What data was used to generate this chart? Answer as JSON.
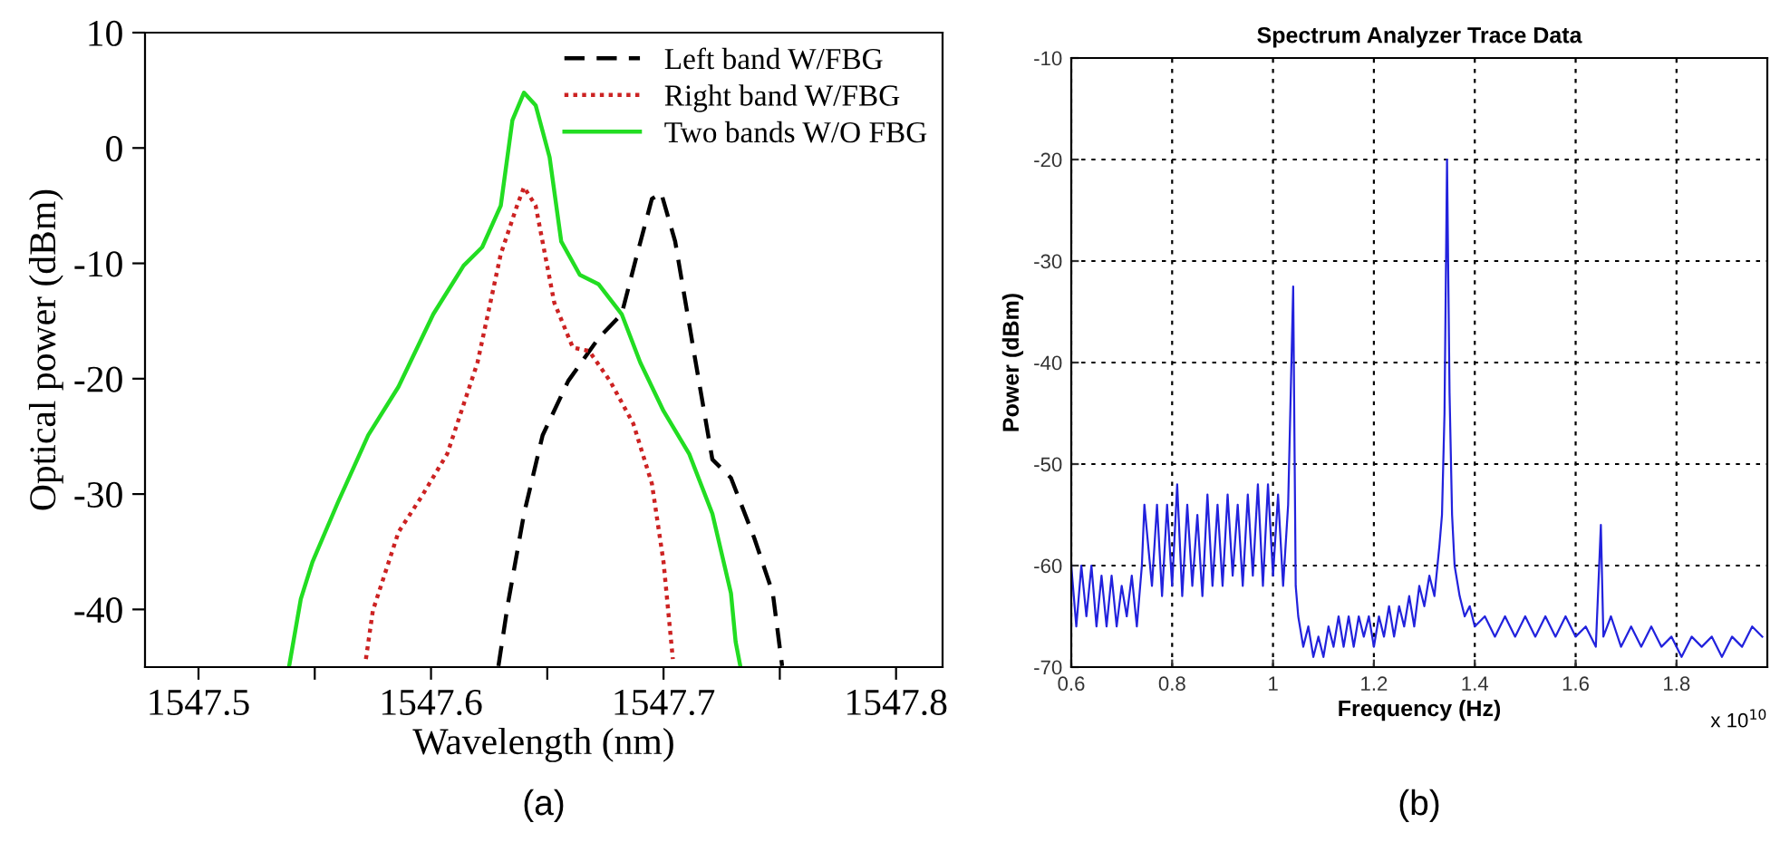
{
  "chart_data": [
    {
      "type": "line",
      "xlabel": "Wavelength (nm)",
      "ylabel": "Optical power (dBm)",
      "xlim": [
        1547.477,
        1547.82
      ],
      "ylim": [
        -45,
        10
      ],
      "xticks": [
        1547.5,
        {
          "value": 1547.55,
          "label": null
        },
        1547.6,
        {
          "value": 1547.65,
          "label": null
        },
        1547.7,
        {
          "value": 1547.75,
          "label": null
        },
        1547.8
      ],
      "yticks": [
        -40,
        -30,
        -20,
        -10,
        0,
        10
      ],
      "legend": "top right",
      "grid": false,
      "series": [
        {
          "name": "Left band W/FBG",
          "color": "#000000",
          "line_style": "dashed",
          "x": [
            1547.629,
            1547.633,
            1547.64,
            1547.648,
            1547.659,
            1547.672,
            1547.682,
            1547.688,
            1547.695,
            1547.699,
            1547.705,
            1547.713,
            1547.721,
            1547.729,
            1547.739,
            1547.747,
            1547.751
          ],
          "values": [
            -44.9,
            -39.6,
            -31.7,
            -24.9,
            -20.2,
            -16.5,
            -14.4,
            -9.7,
            -4.4,
            -3.9,
            -8.1,
            -17.6,
            -27.0,
            -28.6,
            -33.8,
            -38.6,
            -44.9
          ]
        },
        {
          "name": "Right band W/FBG",
          "color": "#cc2222",
          "line_style": "dotted",
          "x": [
            1547.572,
            1547.575,
            1547.586,
            1547.596,
            1547.607,
            1547.62,
            1547.63,
            1547.637,
            1547.64,
            1547.645,
            1547.653,
            1547.661,
            1547.668,
            1547.677,
            1547.687,
            1547.695,
            1547.7,
            1547.703,
            1547.704
          ],
          "values": [
            -44.3,
            -40.1,
            -33.3,
            -30.2,
            -26.5,
            -18.6,
            -9.2,
            -5.0,
            -3.4,
            -5.0,
            -13.4,
            -17.3,
            -17.6,
            -20.2,
            -23.9,
            -29.1,
            -35.9,
            -42.2,
            -44.3
          ]
        },
        {
          "name": "Two bands W/O FBG",
          "color": "#22dd22",
          "line_style": "solid",
          "x": [
            1547.539,
            1547.544,
            1547.549,
            1547.56,
            1547.573,
            1547.586,
            1547.601,
            1547.614,
            1547.622,
            1547.63,
            1547.635,
            1547.64,
            1547.645,
            1547.651,
            1547.656,
            1547.664,
            1547.672,
            1547.682,
            1547.69,
            1547.7,
            1547.711,
            1547.721,
            1547.729,
            1547.731,
            1547.733
          ],
          "values": [
            -44.9,
            -39.1,
            -35.9,
            -30.7,
            -24.9,
            -20.7,
            -14.4,
            -10.2,
            -8.6,
            -5.0,
            2.4,
            4.8,
            3.7,
            -0.8,
            -8.1,
            -11.0,
            -11.8,
            -14.4,
            -18.6,
            -22.8,
            -26.5,
            -31.7,
            -38.6,
            -42.8,
            -44.9
          ]
        }
      ],
      "annotations": [
        "(a)"
      ]
    },
    {
      "type": "line",
      "title": "Spectrum Analyzer Trace Data",
      "xlabel": "Frequency (Hz)",
      "ylabel": "Power (dBm)",
      "xlim": [
        0.6,
        1.98
      ],
      "ylim": [
        -70,
        -10
      ],
      "xticks": [
        0.6,
        0.8,
        1,
        1.2,
        1.4,
        1.6,
        1.8
      ],
      "yticks": [
        -70,
        -60,
        -50,
        -40,
        -30,
        -20,
        -10
      ],
      "grid": true,
      "series": [
        {
          "color": "#2222dd",
          "line_style": "solid",
          "x": [
            0.6,
            0.61,
            0.62,
            0.63,
            0.64,
            0.65,
            0.66,
            0.67,
            0.68,
            0.69,
            0.7,
            0.71,
            0.72,
            0.73,
            0.74,
            0.745,
            0.76,
            0.77,
            0.78,
            0.79,
            0.8,
            0.81,
            0.82,
            0.83,
            0.84,
            0.85,
            0.86,
            0.87,
            0.88,
            0.89,
            0.9,
            0.91,
            0.92,
            0.93,
            0.94,
            0.95,
            0.96,
            0.97,
            0.98,
            0.99,
            1.0,
            1.01,
            1.02,
            1.03,
            1.04,
            1.045,
            1.05,
            1.06,
            1.07,
            1.08,
            1.09,
            1.1,
            1.11,
            1.12,
            1.13,
            1.14,
            1.15,
            1.16,
            1.17,
            1.18,
            1.19,
            1.2,
            1.21,
            1.22,
            1.23,
            1.24,
            1.25,
            1.26,
            1.27,
            1.28,
            1.29,
            1.3,
            1.31,
            1.32,
            1.33,
            1.335,
            1.34,
            1.345,
            1.35,
            1.355,
            1.36,
            1.37,
            1.38,
            1.39,
            1.4,
            1.42,
            1.44,
            1.46,
            1.48,
            1.5,
            1.52,
            1.54,
            1.56,
            1.58,
            1.6,
            1.62,
            1.64,
            1.65,
            1.655,
            1.67,
            1.69,
            1.71,
            1.73,
            1.75,
            1.77,
            1.79,
            1.81,
            1.83,
            1.85,
            1.87,
            1.89,
            1.91,
            1.93,
            1.95,
            1.97
          ],
          "values": [
            -60,
            -66,
            -60,
            -65,
            -60,
            -66,
            -61,
            -66,
            -61,
            -66,
            -62,
            -65,
            -61,
            -66,
            -60,
            -54,
            -62,
            -54,
            -63,
            -54,
            -62,
            -52,
            -63,
            -54,
            -62,
            -55,
            -63,
            -53,
            -62,
            -54,
            -62,
            -53,
            -61,
            -54,
            -62,
            -53,
            -61,
            -52,
            -62,
            -52,
            -61,
            -53,
            -62,
            -54,
            -32.5,
            -62,
            -65,
            -68,
            -66,
            -69,
            -67,
            -69,
            -66,
            -68,
            -65,
            -68,
            -65,
            -68,
            -65,
            -67,
            -65,
            -68,
            -65,
            -67,
            -64,
            -67,
            -64,
            -66,
            -63,
            -66,
            -62,
            -64,
            -61,
            -63,
            -58,
            -55,
            -45,
            -20,
            -43,
            -55,
            -60,
            -63,
            -65,
            -64,
            -66,
            -65,
            -67,
            -65,
            -67,
            -65,
            -67,
            -65,
            -67,
            -65,
            -67,
            -66,
            -68,
            -56,
            -67,
            -65,
            -68,
            -66,
            -68,
            -66,
            -68,
            -67,
            -69,
            -67,
            -68,
            -67,
            -69,
            -67,
            -68,
            -66,
            -67
          ]
        }
      ],
      "annotations": [
        "x 10$^{10}$",
        "(b)"
      ]
    }
  ]
}
